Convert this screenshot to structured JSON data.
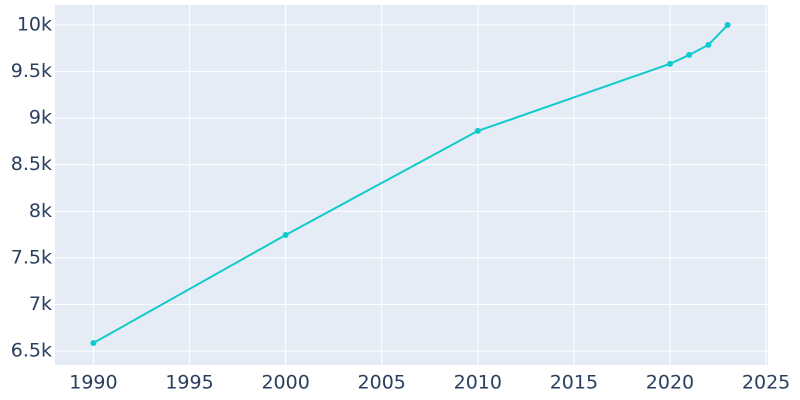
{
  "chart_data": {
    "type": "line",
    "x": [
      1990,
      2000,
      2010,
      2020,
      2021,
      2022,
      2023
    ],
    "series": [
      {
        "color": "#0fcbcb",
        "values": [
          6586,
          7746,
          8863,
          9583,
          9679,
          9787,
          10000
        ]
      }
    ],
    "xlim": [
      1988,
      2025.1
    ],
    "xticks": [
      1990,
      1995,
      2000,
      2005,
      2010,
      2015,
      2020,
      2025
    ],
    "ylim": [
      6350,
      10215
    ],
    "yticks": [
      {
        "value": 6500,
        "label": "6.5k"
      },
      {
        "value": 7000,
        "label": "7k"
      },
      {
        "value": 7500,
        "label": "7.5k"
      },
      {
        "value": 8000,
        "label": "8k"
      },
      {
        "value": 8500,
        "label": "8.5k"
      },
      {
        "value": 9000,
        "label": "9k"
      },
      {
        "value": 9500,
        "label": "9.5k"
      },
      {
        "value": 10000,
        "label": "10k"
      }
    ],
    "grid": true
  }
}
